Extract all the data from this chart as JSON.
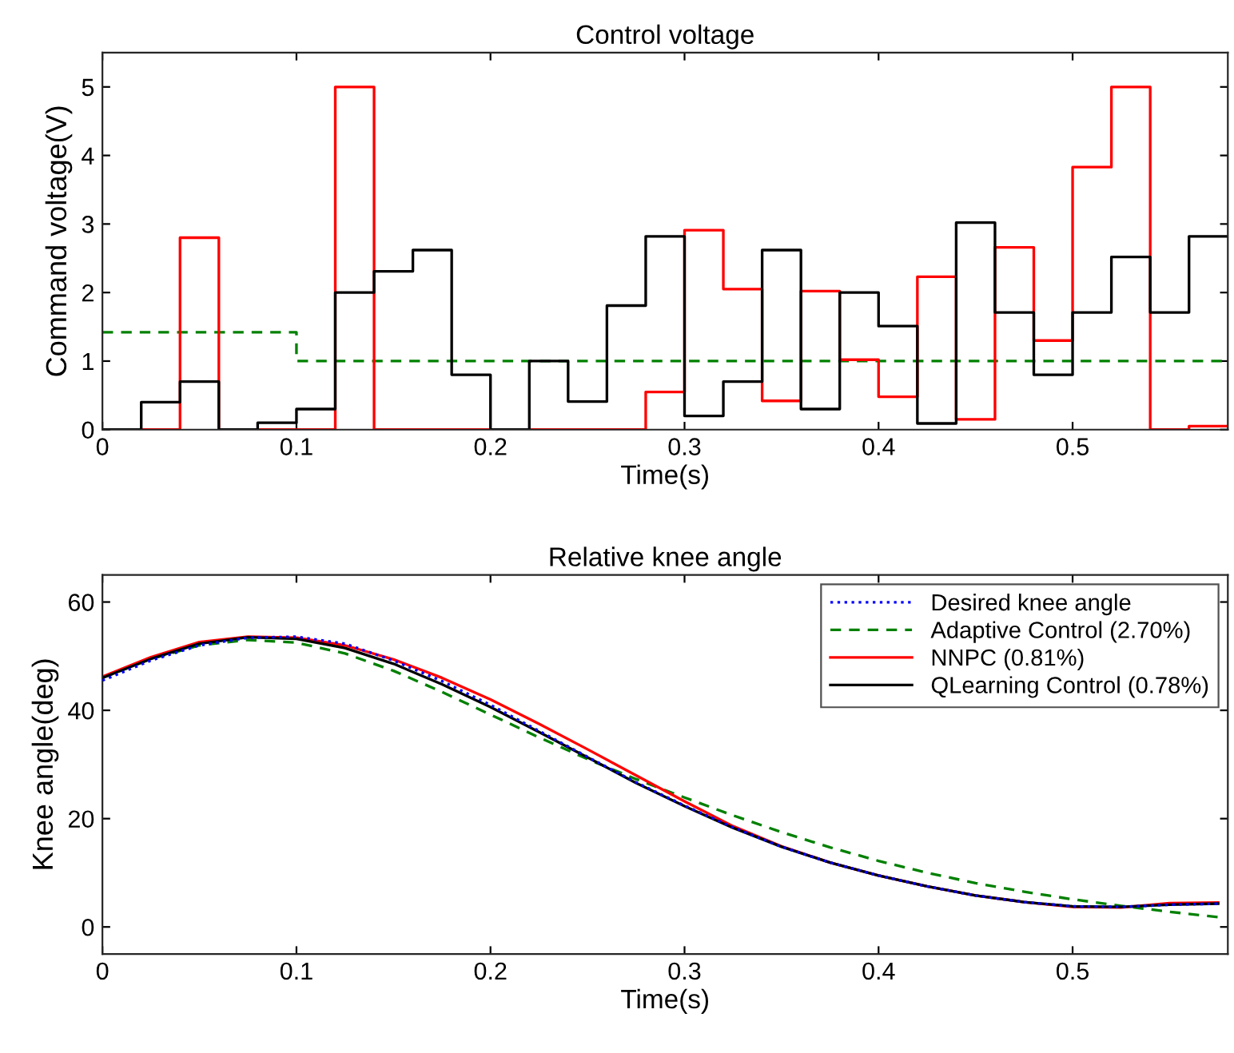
{
  "chart_data": [
    {
      "type": "step",
      "title": "Control voltage",
      "xlabel": "Time(s)",
      "ylabel": "Command voltage(V)",
      "xlim": [
        0,
        0.58
      ],
      "ylim": [
        0,
        5.5
      ],
      "xticks": [
        0,
        0.1,
        0.2,
        0.3,
        0.4,
        0.5
      ],
      "yticks": [
        0,
        1,
        2,
        3,
        4,
        5
      ],
      "grid": false,
      "x": [
        0,
        0.02,
        0.04,
        0.06,
        0.08,
        0.1,
        0.12,
        0.14,
        0.16,
        0.18,
        0.2,
        0.22,
        0.24,
        0.26,
        0.28,
        0.3,
        0.32,
        0.34,
        0.36,
        0.38,
        0.4,
        0.42,
        0.44,
        0.46,
        0.48,
        0.5,
        0.52,
        0.54,
        0.56,
        0.58
      ],
      "series": [
        {
          "color": "#008000",
          "line_style": "dashed",
          "values": [
            1.42,
            1.42,
            1.42,
            1.42,
            1.42,
            1.0,
            1.0,
            1.0,
            1.0,
            1.0,
            1.0,
            1.0,
            1.0,
            1.0,
            1.0,
            1.0,
            1.0,
            1.0,
            1.0,
            1.0,
            1.0,
            1.0,
            1.0,
            1.0,
            1.0,
            1.0,
            1.0,
            1.0,
            1.0,
            1.0
          ]
        },
        {
          "color": "#ff0000",
          "line_style": "solid",
          "values": [
            0,
            0,
            2.8,
            0,
            0,
            0,
            5.0,
            0,
            0,
            0,
            0,
            0,
            0,
            0,
            0.55,
            2.91,
            2.05,
            0.42,
            2.02,
            1.02,
            0.48,
            2.23,
            0.15,
            2.66,
            1.3,
            3.83,
            5.0,
            0,
            0.05,
            0.05
          ]
        },
        {
          "color": "#000000",
          "line_style": "solid",
          "values": [
            0,
            0.4,
            0.7,
            0,
            0.1,
            0.3,
            2.0,
            2.31,
            2.62,
            0.8,
            0,
            1.0,
            0.41,
            1.81,
            2.82,
            0.2,
            0.7,
            2.62,
            0.3,
            2.0,
            1.51,
            0.09,
            3.02,
            1.71,
            0.8,
            1.71,
            2.52,
            1.71,
            2.82,
            2.82
          ]
        }
      ]
    },
    {
      "type": "line",
      "title": "Relative knee angle",
      "xlabel": "Time(s)",
      "ylabel": "Knee angle(deg)",
      "xlim": [
        0,
        0.58
      ],
      "ylim": [
        -5,
        65
      ],
      "xticks": [
        0,
        0.1,
        0.2,
        0.3,
        0.4,
        0.5
      ],
      "yticks": [
        0,
        20,
        40,
        60
      ],
      "grid": false,
      "legend": "top right",
      "x": [
        0,
        0.025,
        0.05,
        0.075,
        0.1,
        0.125,
        0.15,
        0.175,
        0.2,
        0.225,
        0.25,
        0.275,
        0.3,
        0.325,
        0.35,
        0.375,
        0.4,
        0.425,
        0.45,
        0.475,
        0.5,
        0.525,
        0.55,
        0.575
      ],
      "series": [
        {
          "name": "Desired knee angle",
          "color": "#0000ff",
          "line_style": "dotted",
          "values": [
            45.5,
            49.2,
            52.0,
            53.4,
            53.6,
            52.3,
            49.2,
            45.4,
            41.0,
            36.2,
            31.4,
            26.7,
            22.4,
            18.4,
            14.8,
            11.9,
            9.5,
            7.5,
            5.8,
            4.6,
            3.8,
            3.7,
            4.1,
            4.3
          ]
        },
        {
          "name": "Adaptive Control (2.70%)",
          "color": "#008000",
          "line_style": "dashed",
          "values": [
            46.0,
            49.5,
            52.0,
            53.0,
            52.5,
            50.5,
            47.3,
            43.4,
            39.2,
            35.0,
            31.0,
            27.3,
            23.9,
            20.6,
            17.5,
            14.7,
            12.2,
            10.0,
            8.1,
            6.5,
            5.1,
            3.9,
            2.8,
            1.8
          ]
        },
        {
          "name": "NNPC (0.81%)",
          "color": "#ff0000",
          "line_style": "solid",
          "values": [
            46.2,
            49.8,
            52.6,
            53.6,
            53.4,
            52.0,
            49.4,
            46.0,
            42.0,
            37.5,
            32.8,
            28.0,
            23.2,
            18.6,
            14.9,
            11.9,
            9.5,
            7.5,
            5.8,
            4.6,
            3.7,
            3.6,
            4.4,
            4.5
          ]
        },
        {
          "name": "QLearning Control (0.78%)",
          "color": "#000000",
          "line_style": "solid",
          "values": [
            46.0,
            49.5,
            52.3,
            53.5,
            53.2,
            51.5,
            48.6,
            44.8,
            40.6,
            36.0,
            31.3,
            26.6,
            22.3,
            18.3,
            14.8,
            11.9,
            9.5,
            7.5,
            5.8,
            4.6,
            3.8,
            3.7,
            4.1,
            4.3
          ]
        }
      ]
    }
  ]
}
